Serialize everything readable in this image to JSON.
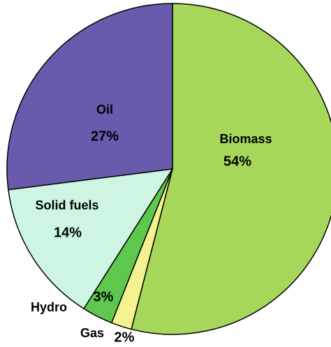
{
  "chart_data": {
    "type": "pie",
    "categories": [
      "Biomass",
      "Gas",
      "Hydro",
      "Solid fuels",
      "Oil"
    ],
    "values": [
      54,
      2,
      3,
      14,
      27
    ],
    "value_labels": [
      "54%",
      "2%",
      "3%",
      "14%",
      "27%"
    ],
    "colors": [
      "#a6d75a",
      "#f2f290",
      "#5ec84e",
      "#cdf5e2",
      "#6a5aad"
    ]
  }
}
